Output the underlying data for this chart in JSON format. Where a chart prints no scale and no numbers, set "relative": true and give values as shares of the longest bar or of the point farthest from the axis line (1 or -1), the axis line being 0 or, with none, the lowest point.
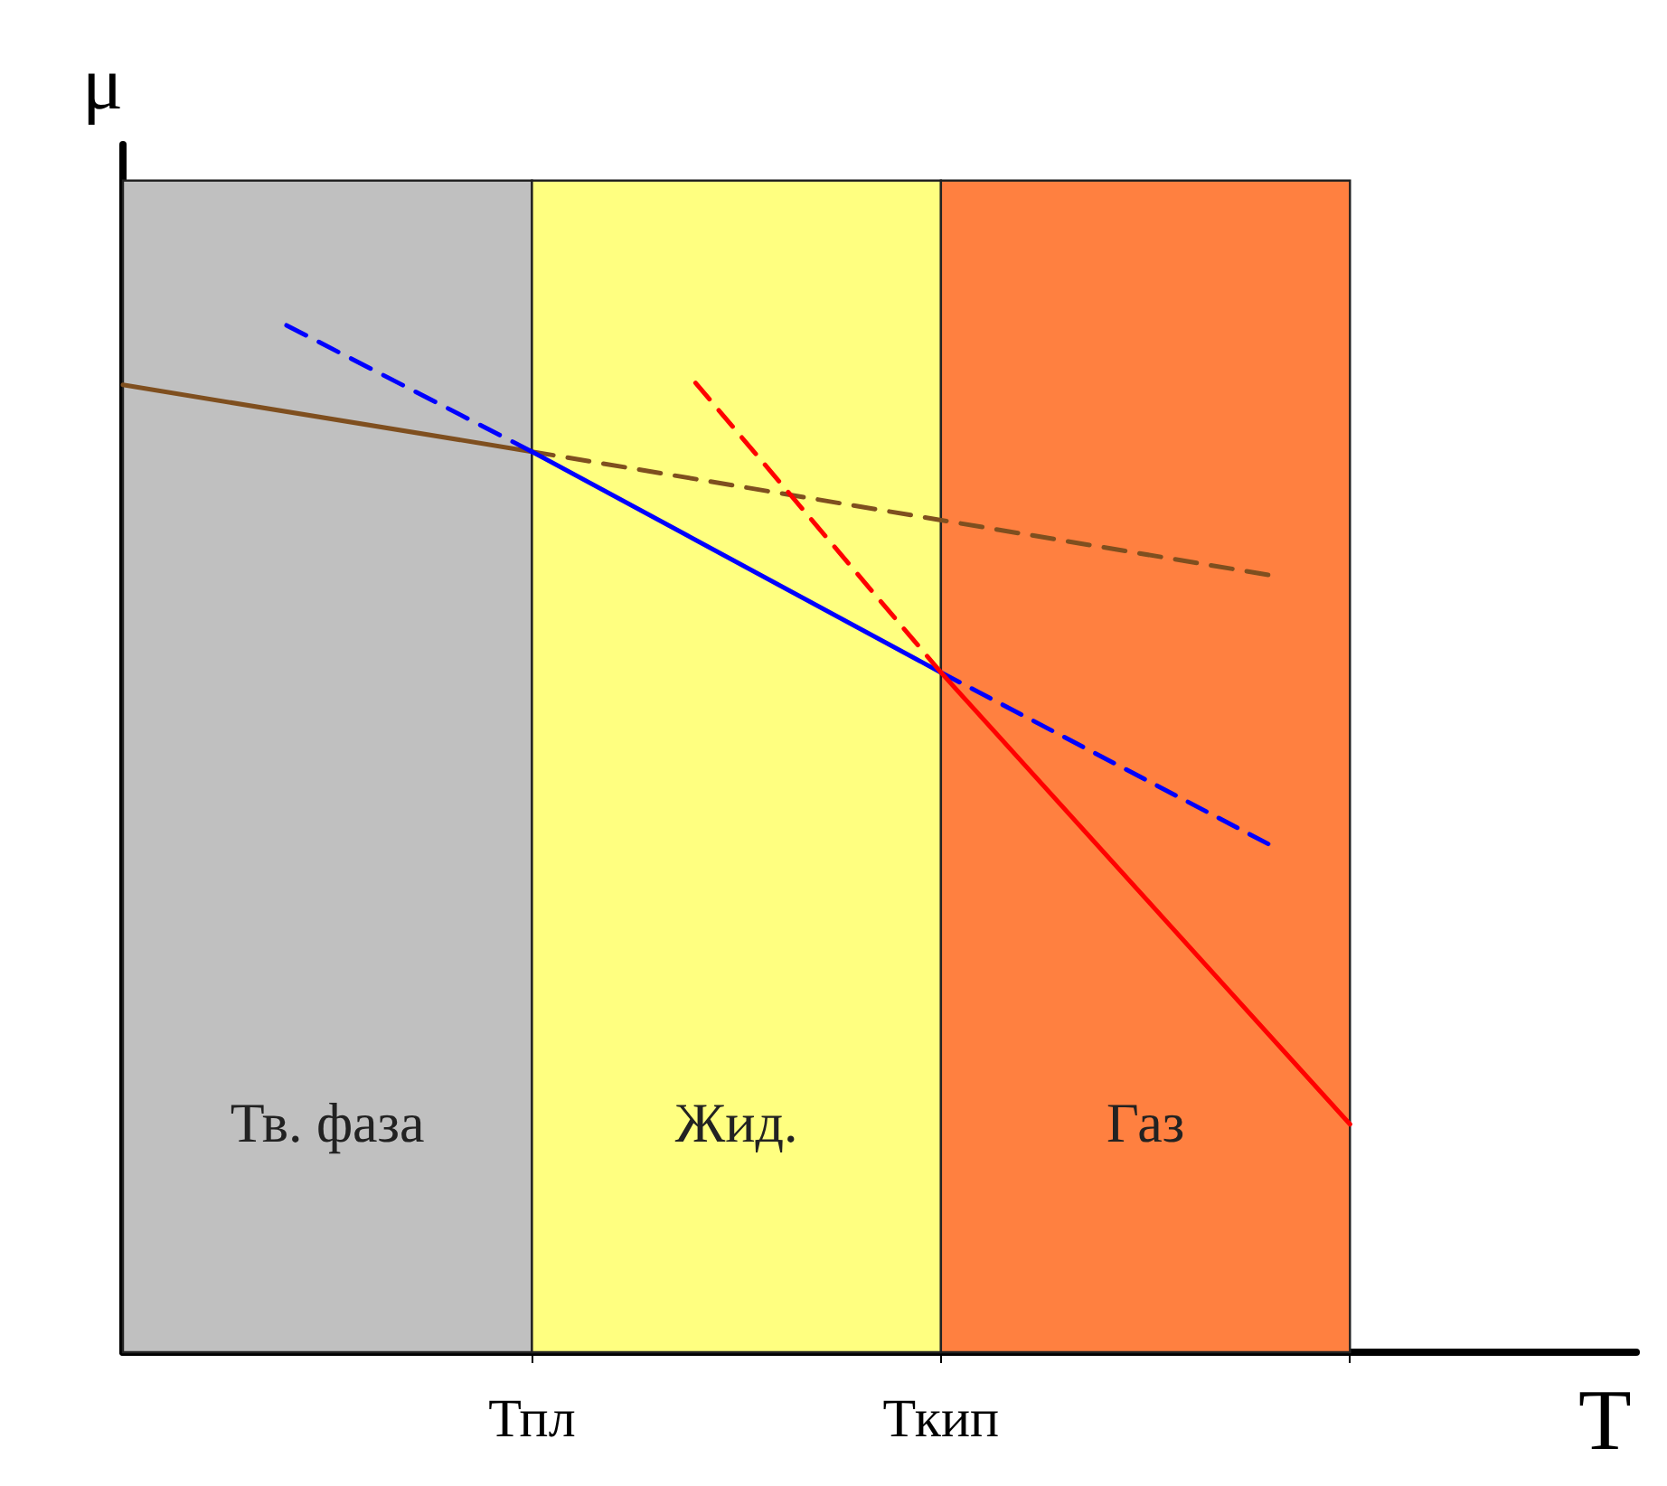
{
  "chart_data": {
    "type": "line",
    "relative": true,
    "xlabel": "T",
    "ylabel": "μ",
    "categories": [
      null,
      null,
      null,
      null,
      null,
      null,
      null,
      null,
      null,
      null,
      "Тпл",
      null,
      null,
      null,
      null,
      null,
      null,
      null,
      null,
      null,
      "Ткип",
      null,
      null,
      null,
      null,
      null,
      null,
      null,
      null,
      null,
      null,
      null,
      null,
      null,
      null,
      null,
      null,
      null
    ],
    "bands": [
      {
        "axis": "x",
        "from": "Тпл",
        "to": "Ткип",
        "label": "Жид.",
        "color": "#ffff80"
      }
    ],
    "annotations": [
      "Тв. фаза",
      "Газ"
    ],
    "series": [
      {
        "color": "#7f4f1f",
        "line_style": "solid",
        "values": [
          0.942,
          null,
          null,
          null,
          null,
          null,
          null,
          null,
          null,
          null,
          0.877,
          null,
          null,
          null,
          null,
          null,
          null,
          null,
          null,
          null,
          null,
          null,
          null,
          null,
          null,
          null,
          null,
          null,
          null,
          null,
          null,
          null,
          null,
          null,
          null,
          null,
          null,
          null
        ]
      },
      {
        "color": "#7f4f1f",
        "line_style": "dashed",
        "values": [
          null,
          null,
          null,
          null,
          null,
          null,
          null,
          null,
          null,
          null,
          0.877,
          null,
          null,
          null,
          null,
          null,
          null,
          null,
          null,
          null,
          null,
          null,
          null,
          null,
          null,
          null,
          null,
          null,
          0.757,
          null,
          null,
          null,
          null,
          null,
          null,
          null,
          null,
          null
        ]
      },
      {
        "color": "#0000ff",
        "line_style": "dashed",
        "values": [
          null,
          null,
          null,
          null,
          1,
          null,
          null,
          null,
          null,
          null,
          0.877,
          null,
          null,
          null,
          null,
          null,
          null,
          null,
          null,
          null,
          null,
          null,
          null,
          null,
          null,
          null,
          null,
          null,
          null,
          null,
          null,
          null,
          null,
          null,
          null,
          null,
          null,
          null
        ]
      },
      {
        "color": "#0000ff",
        "line_style": "solid",
        "values": [
          null,
          null,
          null,
          null,
          null,
          null,
          null,
          null,
          null,
          null,
          0.877,
          null,
          null,
          null,
          null,
          null,
          null,
          null,
          null,
          null,
          0.662,
          null,
          null,
          null,
          null,
          null,
          null,
          null,
          null,
          null,
          null,
          null,
          null,
          null,
          null,
          null,
          null,
          null
        ]
      },
      {
        "color": "#0000ff",
        "line_style": "dashed",
        "values": [
          null,
          null,
          null,
          null,
          null,
          null,
          null,
          null,
          null,
          null,
          null,
          null,
          null,
          null,
          null,
          null,
          null,
          null,
          null,
          null,
          0.662,
          null,
          null,
          null,
          null,
          null,
          null,
          null,
          0.495,
          null,
          null,
          null,
          null,
          null,
          null,
          null,
          null,
          null
        ]
      },
      {
        "color": "#ff0000",
        "line_style": "dashed",
        "values": [
          null,
          null,
          null,
          null,
          null,
          null,
          null,
          null,
          null,
          null,
          null,
          null,
          null,
          null,
          0.944,
          null,
          null,
          null,
          null,
          null,
          0.662,
          null,
          null,
          null,
          null,
          null,
          null,
          null,
          null,
          null,
          null,
          null,
          null,
          null,
          null,
          null,
          null,
          null
        ]
      },
      {
        "color": "#ff0000",
        "line_style": "solid",
        "values": [
          null,
          null,
          null,
          null,
          null,
          null,
          null,
          null,
          null,
          null,
          null,
          null,
          null,
          null,
          null,
          null,
          null,
          null,
          null,
          null,
          0.662,
          null,
          null,
          null,
          null,
          null,
          null,
          null,
          null,
          null,
          0.222,
          null,
          null,
          null,
          null,
          null,
          null,
          null
        ]
      }
    ]
  }
}
